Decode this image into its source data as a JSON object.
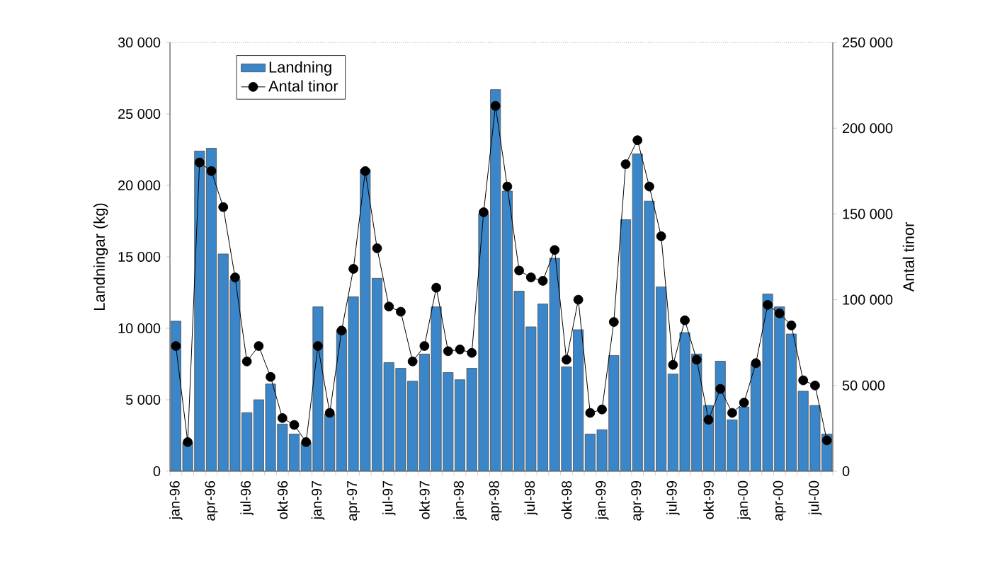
{
  "chart_data": {
    "type": "bar",
    "ylabel": "Landningar (kg)",
    "y2label": "Antal tinor",
    "categories": [
      "jan-96",
      null,
      null,
      "apr-96",
      null,
      null,
      "jul-96",
      null,
      null,
      "okt-96",
      null,
      null,
      "jan-97",
      null,
      null,
      "apr-97",
      null,
      null,
      "jul-97",
      null,
      null,
      "okt-97",
      null,
      null,
      "jan-98",
      null,
      null,
      "apr-98",
      null,
      null,
      "jul-98",
      null,
      null,
      "okt-98",
      null,
      null,
      "jan-99",
      null,
      null,
      "apr-99",
      null,
      null,
      "jul-99",
      null,
      null,
      "okt-99",
      null,
      null,
      "jan-00",
      null,
      null,
      "apr-00",
      null,
      null,
      "jul-00",
      null
    ],
    "series": [
      {
        "name": "Landning",
        "color": "#3a86c8",
        "values": [
          10500,
          2000,
          22400,
          22600,
          15200,
          13400,
          4100,
          5000,
          6100,
          3300,
          2600,
          2000,
          11500,
          4000,
          9900,
          12200,
          21100,
          13500,
          7600,
          7200,
          6300,
          8200,
          11500,
          6900,
          6400,
          7200,
          18000,
          26700,
          19600,
          12600,
          10100,
          11700,
          14900,
          7300,
          9900,
          2600,
          2900,
          8100,
          17600,
          22200,
          18900,
          12900,
          6800,
          9700,
          8200,
          4600,
          7700,
          3600,
          4500,
          7500,
          12400,
          11500,
          9600,
          5600,
          4600,
          2600
        ]
      },
      {
        "name": "Antal tinor",
        "type": "line",
        "axis": "y2",
        "color": "#000000",
        "marker": "circle",
        "line_style": "solid",
        "values": [
          73000,
          17000,
          180000,
          175000,
          154000,
          113000,
          64000,
          73000,
          55000,
          31000,
          27000,
          17000,
          73000,
          34000,
          82000,
          118000,
          175000,
          130000,
          96000,
          93000,
          64000,
          73000,
          107000,
          70000,
          71000,
          69000,
          151000,
          213000,
          166000,
          117000,
          113000,
          111000,
          129000,
          65000,
          100000,
          34000,
          36000,
          87000,
          179000,
          193000,
          166000,
          137000,
          62000,
          88000,
          65000,
          30000,
          48000,
          34000,
          40000,
          63000,
          97000,
          92000,
          85000,
          53000,
          50000,
          18000
        ]
      }
    ],
    "ylim": [
      0,
      30000
    ],
    "yticks": [
      {
        "value": 0,
        "label": "0"
      },
      {
        "value": 5000,
        "label": "5 000"
      },
      {
        "value": 10000,
        "label": "10 000"
      },
      {
        "value": 15000,
        "label": "15 000"
      },
      {
        "value": 20000,
        "label": "20 000"
      },
      {
        "value": 25000,
        "label": "25 000"
      },
      {
        "value": 30000,
        "label": "30 000"
      }
    ],
    "y2lim": [
      0,
      250000
    ],
    "y2ticks": [
      {
        "value": 0,
        "label": "0"
      },
      {
        "value": 50000,
        "label": "50 000"
      },
      {
        "value": 100000,
        "label": "100 000"
      },
      {
        "value": 150000,
        "label": "150 000"
      },
      {
        "value": 200000,
        "label": "200 000"
      },
      {
        "value": 250000,
        "label": "250 000"
      }
    ],
    "grid": false,
    "legend": "top left"
  }
}
